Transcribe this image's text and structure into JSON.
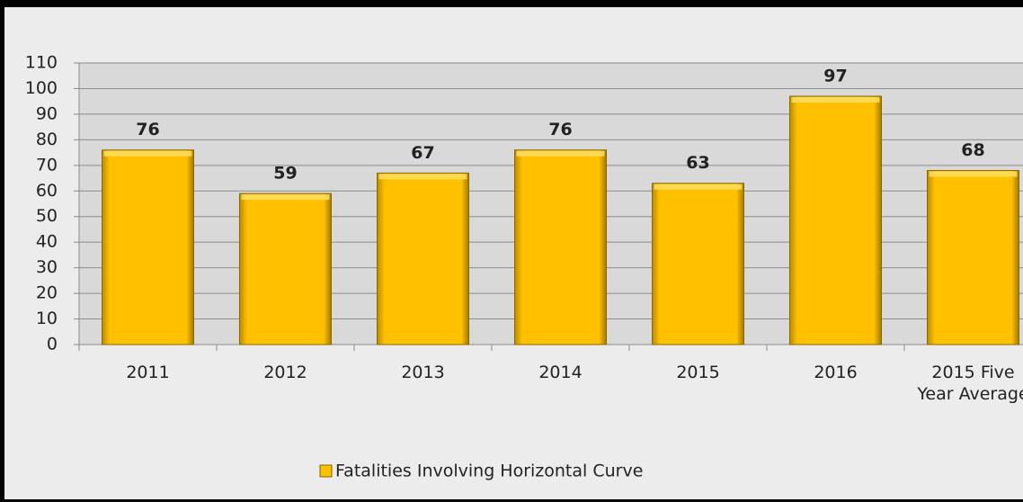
{
  "chart_data": {
    "type": "bar",
    "categories": [
      "2011",
      "2012",
      "2013",
      "2014",
      "2015",
      "2016",
      "2015 Five Year Average"
    ],
    "series": [
      {
        "name": "Fatalities Involving Horizontal Curve",
        "color": "#ffc000",
        "values": [
          76,
          59,
          67,
          76,
          63,
          97,
          68
        ]
      }
    ],
    "ylim": [
      0,
      110
    ],
    "yticks": [
      0,
      10,
      20,
      30,
      40,
      50,
      60,
      70,
      80,
      90,
      100,
      110
    ],
    "grid": true,
    "legend": "bottom"
  }
}
